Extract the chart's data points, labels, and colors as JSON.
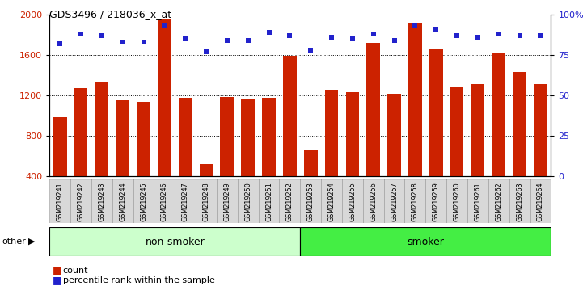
{
  "title": "GDS3496 / 218036_x_at",
  "categories": [
    "GSM219241",
    "GSM219242",
    "GSM219243",
    "GSM219244",
    "GSM219245",
    "GSM219246",
    "GSM219247",
    "GSM219248",
    "GSM219249",
    "GSM219250",
    "GSM219251",
    "GSM219252",
    "GSM219253",
    "GSM219254",
    "GSM219255",
    "GSM219256",
    "GSM219257",
    "GSM219258",
    "GSM219259",
    "GSM219260",
    "GSM219261",
    "GSM219262",
    "GSM219263",
    "GSM219264"
  ],
  "counts": [
    980,
    1270,
    1330,
    1150,
    1130,
    1950,
    1170,
    520,
    1180,
    1160,
    1170,
    1590,
    650,
    1250,
    1230,
    1720,
    1210,
    1910,
    1650,
    1280,
    1310,
    1620,
    1430,
    1310
  ],
  "percentiles": [
    82,
    88,
    87,
    83,
    83,
    93,
    85,
    77,
    84,
    84,
    89,
    87,
    78,
    86,
    85,
    88,
    84,
    93,
    91,
    87,
    86,
    88,
    87,
    87
  ],
  "bar_color": "#cc2200",
  "dot_color": "#2222cc",
  "ylim_left": [
    400,
    2000
  ],
  "ylim_right": [
    0,
    100
  ],
  "yticks_left": [
    400,
    800,
    1200,
    1600,
    2000
  ],
  "yticks_right": [
    0,
    25,
    50,
    75,
    100
  ],
  "yticklabels_right": [
    "0",
    "25",
    "50",
    "75",
    "100%"
  ],
  "group1_label": "non-smoker",
  "group2_label": "smoker",
  "group1_count": 12,
  "other_label": "other",
  "legend_count": "count",
  "legend_percentile": "percentile rank within the sample",
  "bg_color": "#d8d8d8",
  "group1_color": "#ccffcc",
  "group2_color": "#44ee44"
}
